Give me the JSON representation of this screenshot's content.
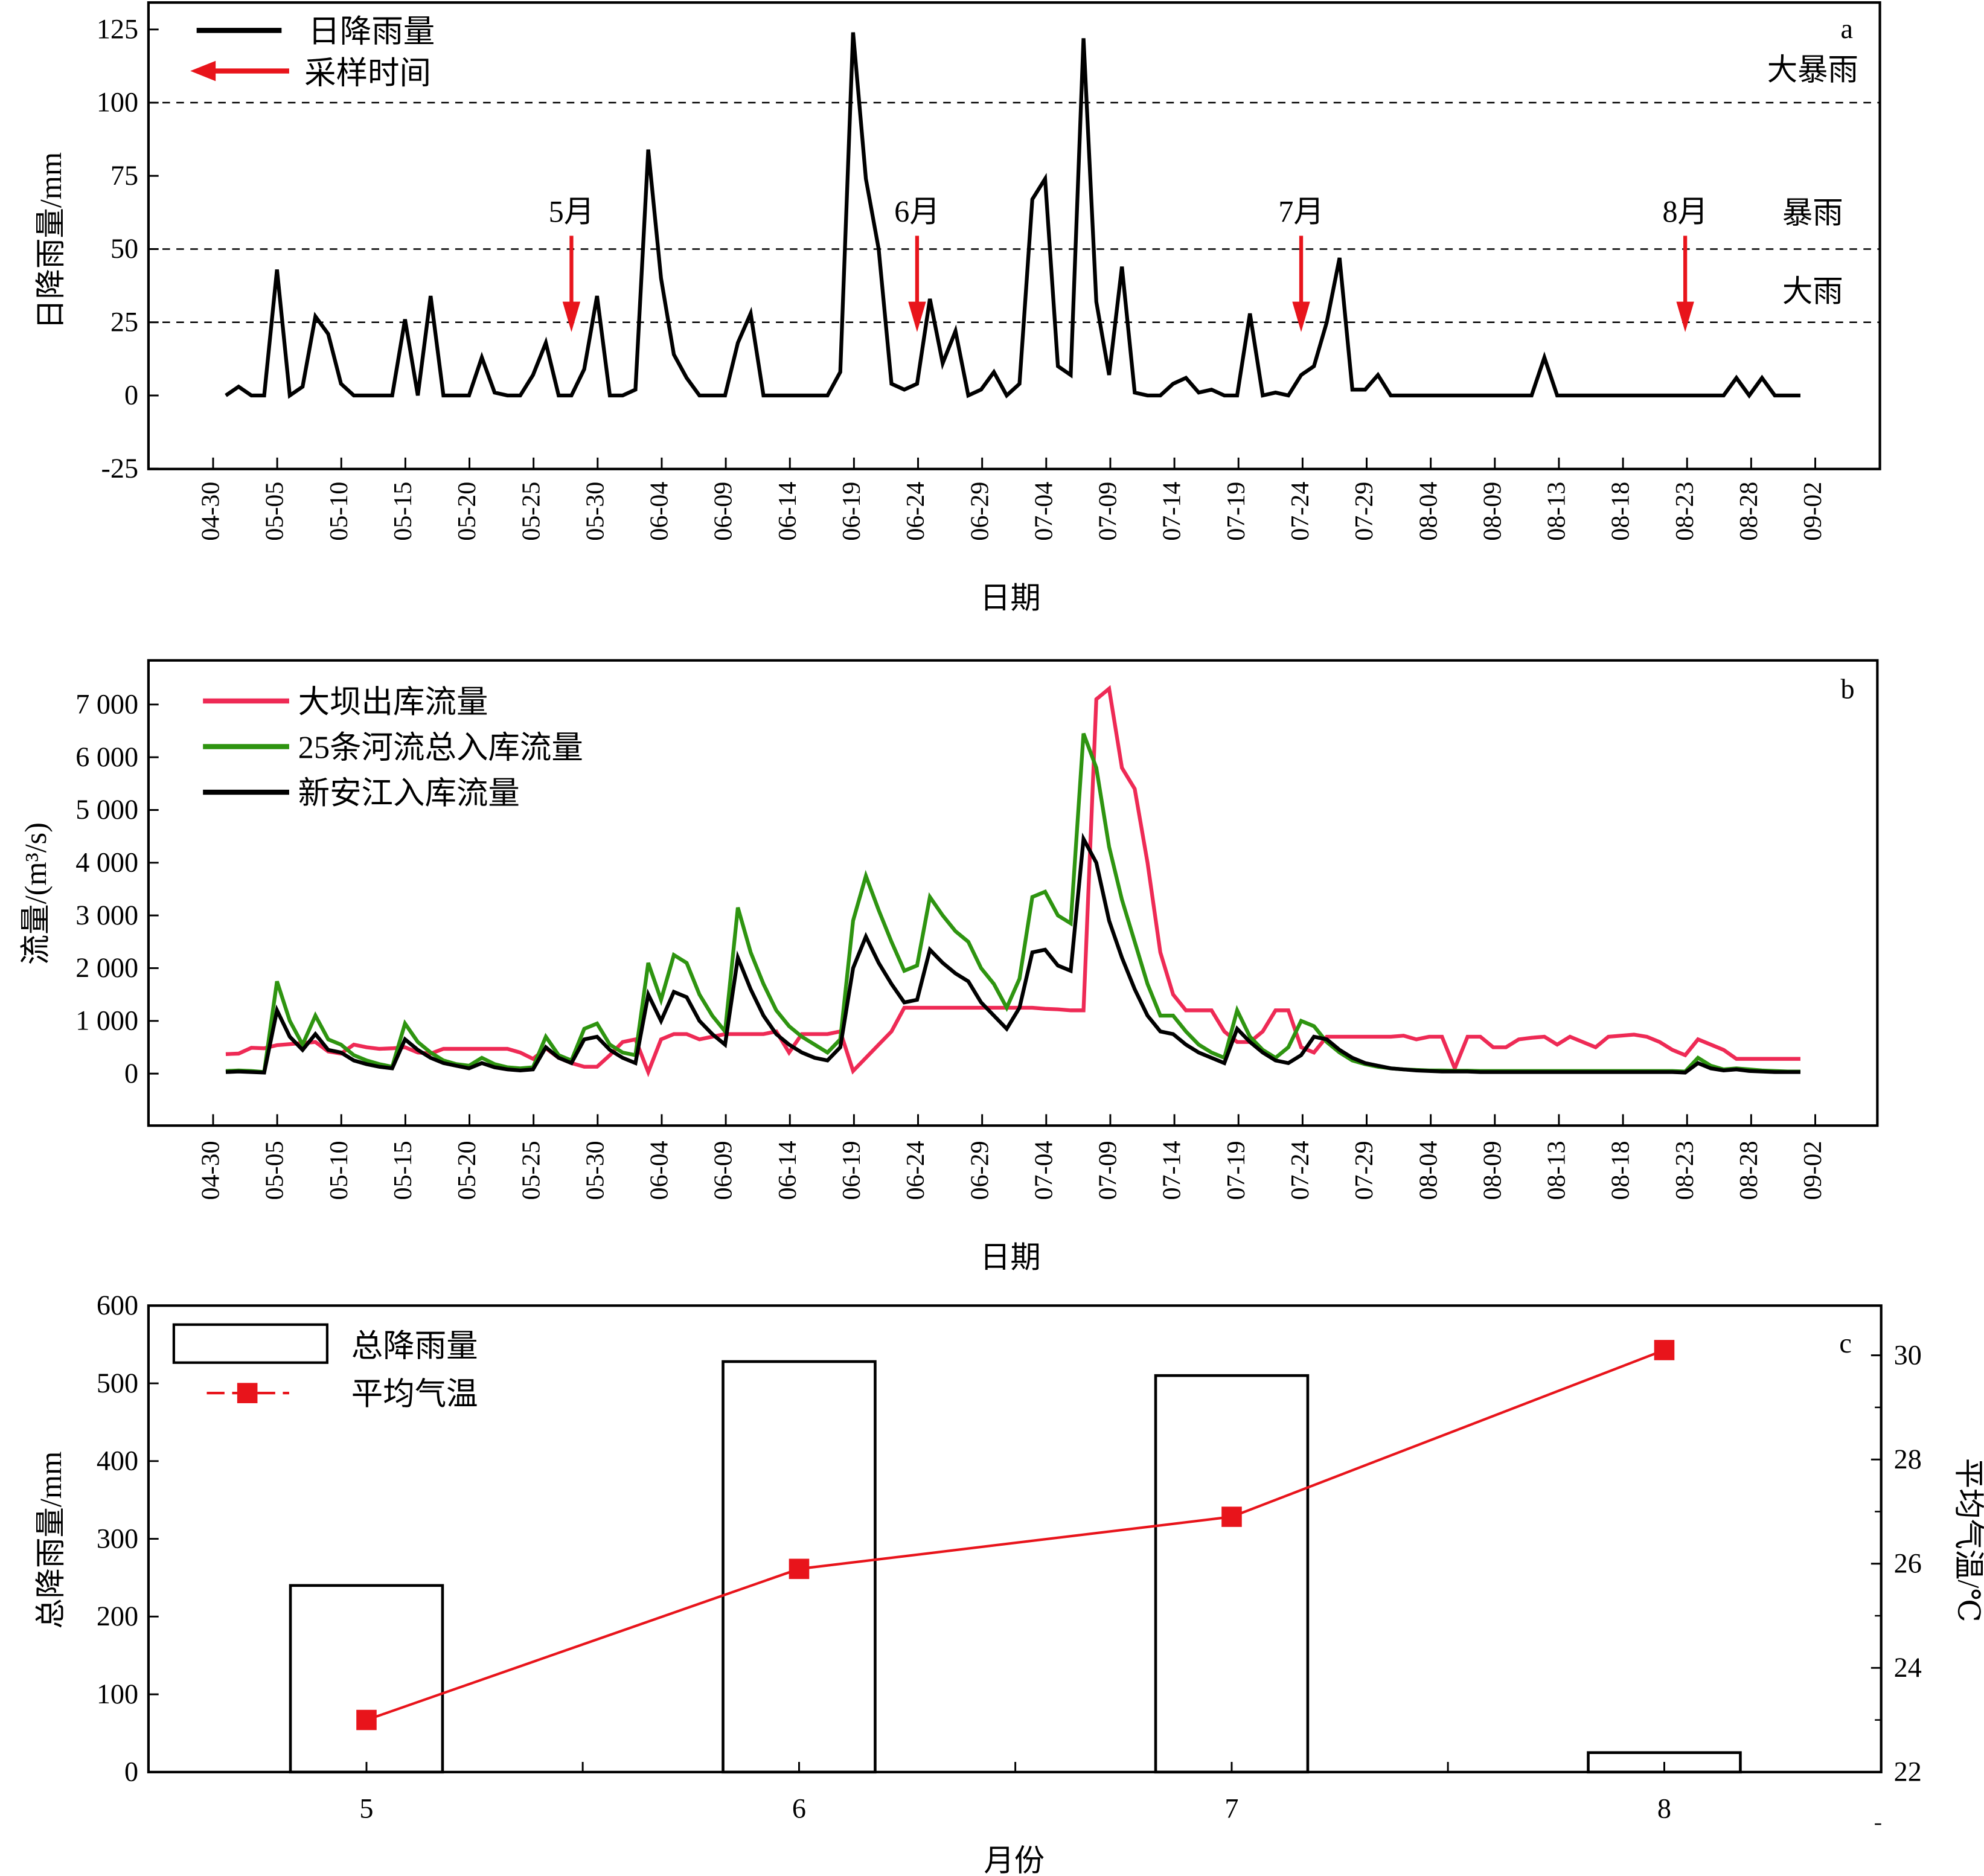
{
  "chart_data": [
    {
      "panel": "a",
      "type": "line",
      "ylabel": "日降雨量/mm",
      "xlabel": "日期",
      "ylim": [
        -25,
        125
      ],
      "yticks": [
        "-25",
        "0",
        "25",
        "50",
        "75",
        "100",
        "125"
      ],
      "xticks": [
        "04-30",
        "05-05",
        "05-10",
        "05-15",
        "05-20",
        "05-25",
        "05-30",
        "06-04",
        "06-09",
        "06-14",
        "06-19",
        "06-24",
        "06-29",
        "07-04",
        "07-09",
        "07-14",
        "07-19",
        "07-24",
        "07-29",
        "08-04",
        "08-09",
        "08-13",
        "08-18",
        "08-23",
        "08-28",
        "09-02"
      ],
      "legend": {
        "placement": "top-left",
        "rain": "日降雨量",
        "sampling": "采样时间"
      },
      "series": [
        {
          "name": "日降雨量",
          "color": "#000000",
          "values": {
            "05": [
              0,
              3,
              0,
              0,
              43,
              0,
              3,
              27,
              21,
              4,
              0,
              0,
              0,
              0,
              26,
              0,
              34,
              0,
              0,
              0,
              13,
              1,
              0,
              0,
              7,
              18,
              0,
              0,
              9,
              34,
              0
            ],
            "06": [
              0,
              2,
              84,
              40,
              14,
              6,
              0,
              0,
              0,
              18,
              28,
              0,
              0,
              0,
              0,
              0,
              0,
              8,
              124,
              74,
              50,
              4,
              2,
              4,
              33,
              11,
              22,
              0,
              2,
              8
            ],
            "07": [
              0,
              4,
              67,
              74,
              10,
              7,
              122,
              32,
              7,
              44,
              1,
              0,
              0,
              4,
              6,
              1,
              2,
              0,
              0,
              28,
              0,
              1,
              0,
              7,
              10,
              25,
              47,
              2,
              2,
              7,
              0
            ],
            "08": [
              0,
              0,
              0,
              0,
              0,
              0,
              0,
              0,
              0,
              0,
              0,
              13,
              0,
              0,
              0,
              0,
              0,
              0,
              0,
              0,
              0,
              0,
              0,
              0,
              0,
              0,
              6,
              0,
              6,
              0,
              0
            ],
            "09": [
              0
            ]
          }
        }
      ],
      "reference_lines": [
        {
          "value": 100,
          "label": "大暴雨"
        },
        {
          "value": 50,
          "label": "暴雨"
        },
        {
          "value": 25,
          "label": "大雨"
        }
      ],
      "sampling_arrows": [
        {
          "date": "05-28",
          "label": "5月"
        },
        {
          "date": "06-24",
          "label": "6月"
        },
        {
          "date": "07-24",
          "label": "7月"
        },
        {
          "date": "08-23",
          "label": "8月"
        }
      ],
      "arrow_color": "#e8141b",
      "panel_label": "a"
    },
    {
      "panel": "b",
      "type": "line",
      "ylabel": "流量/(m³/s)",
      "xlabel": "日期",
      "ylim": [
        0,
        7000
      ],
      "yticks": [
        "0",
        "1 000",
        "2 000",
        "3 000",
        "4 000",
        "5 000",
        "6 000",
        "7 000"
      ],
      "xticks": [
        "04-30",
        "05-05",
        "05-10",
        "05-15",
        "05-20",
        "05-25",
        "05-30",
        "06-04",
        "06-09",
        "06-14",
        "06-19",
        "06-24",
        "06-29",
        "07-04",
        "07-09",
        "07-14",
        "07-19",
        "07-24",
        "07-29",
        "08-04",
        "08-09",
        "08-13",
        "08-18",
        "08-23",
        "08-28",
        "09-02"
      ],
      "legend_placement": "top-left",
      "series": [
        {
          "name": "大坝出库流量",
          "color": "#ee2a55",
          "values": {
            "05": [
              370,
              380,
              490,
              480,
              540,
              560,
              580,
              600,
              420,
              380,
              550,
              500,
              470,
              480,
              500,
              400,
              380,
              470,
              470,
              470,
              470,
              470,
              470,
              400,
              280,
              480,
              300,
              200,
              130,
              130,
              350
            ],
            "06": [
              600,
              650,
              30,
              650,
              750,
              750,
              650,
              700,
              750,
              750,
              750,
              750,
              800,
              400,
              750,
              750,
              750,
              800,
              50,
              300,
              550,
              800,
              1250,
              1250,
              1250,
              1250,
              1250,
              1250,
              1250,
              1250
            ],
            "07": [
              1250,
              1250,
              1250,
              1230,
              1220,
              1200,
              1200,
              7100,
              7300,
              5800,
              5400,
              4000,
              2300,
              1500,
              1200,
              1200,
              1200,
              800,
              600,
              600,
              800,
              1200,
              1200,
              500,
              400,
              700,
              700,
              700,
              700,
              700,
              700
            ],
            "08": [
              720,
              650,
              700,
              700,
              100,
              700,
              700,
              500,
              500,
              650,
              680,
              700,
              550,
              700,
              600,
              500,
              700,
              720,
              740,
              700,
              600,
              450,
              350,
              650,
              550,
              450,
              280,
              280,
              280,
              280,
              280
            ],
            "09": [
              280
            ]
          }
        },
        {
          "name": "25条河流总入库流量",
          "color": "#2e9410",
          "values": {
            "05": [
              50,
              60,
              50,
              30,
              1750,
              1000,
              550,
              1100,
              650,
              550,
              350,
              250,
              180,
              130,
              950,
              600,
              400,
              250,
              180,
              150,
              300,
              180,
              120,
              100,
              120,
              700,
              350,
              250,
              850,
              950,
              550
            ],
            "06": [
              400,
              350,
              2100,
              1400,
              2250,
              2100,
              1500,
              1100,
              800,
              3150,
              2300,
              1700,
              1200,
              900,
              700,
              550,
              400,
              650,
              2900,
              3750,
              3100,
              2500,
              1950,
              2050,
              3350,
              3000,
              2700,
              2500,
              2000,
              1700
            ],
            "07": [
              1250,
              1800,
              3350,
              3450,
              3000,
              2850,
              6450,
              5800,
              4300,
              3300,
              2500,
              1700,
              1100,
              1100,
              800,
              550,
              400,
              300,
              1200,
              700,
              450,
              300,
              500,
              1000,
              900,
              600,
              400,
              250,
              180,
              130,
              100
            ],
            "08": [
              80,
              70,
              60,
              60,
              55,
              55,
              50,
              50,
              50,
              50,
              50,
              50,
              50,
              50,
              50,
              50,
              50,
              50,
              50,
              50,
              50,
              50,
              40,
              300,
              150,
              80,
              100,
              80,
              60,
              50,
              40
            ],
            "09": [
              40
            ]
          }
        },
        {
          "name": "新安江入库流量",
          "color": "#000000",
          "values": {
            "05": [
              30,
              40,
              30,
              20,
              1200,
              700,
              450,
              750,
              450,
              400,
              250,
              180,
              130,
              100,
              650,
              450,
              300,
              200,
              150,
              100,
              200,
              120,
              80,
              60,
              80,
              500,
              300,
              200,
              650,
              700,
              450
            ],
            "06": [
              300,
              200,
              1500,
              1000,
              1550,
              1450,
              1000,
              750,
              550,
              2200,
              1600,
              1100,
              750,
              550,
              400,
              300,
              250,
              500,
              2000,
              2600,
              2100,
              1700,
              1350,
              1400,
              2350,
              2100,
              1900,
              1750,
              1350,
              1100
            ],
            "07": [
              850,
              1250,
              2300,
              2350,
              2050,
              1950,
              4450,
              4000,
              2900,
              2200,
              1600,
              1100,
              800,
              750,
              550,
              400,
              300,
              200,
              850,
              600,
              400,
              250,
              200,
              350,
              700,
              650,
              450,
              300,
              200,
              150,
              100
            ],
            "08": [
              80,
              60,
              50,
              40,
              40,
              40,
              30,
              30,
              30,
              30,
              30,
              30,
              30,
              30,
              30,
              30,
              30,
              30,
              30,
              30,
              30,
              30,
              20,
              200,
              100,
              60,
              80,
              50,
              40,
              30,
              30
            ],
            "09": [
              30
            ]
          }
        }
      ],
      "panel_label": "b"
    },
    {
      "panel": "c",
      "type": "bar+line",
      "xlabel": "月份",
      "ylabel": "总降雨量/mm",
      "ylabel_right": "平均气温/℃",
      "categories": [
        "5",
        "6",
        "7",
        "8"
      ],
      "ylim": [
        0,
        600
      ],
      "ylim_right": [
        22,
        31
      ],
      "yticks": [
        "0",
        "100",
        "200",
        "300",
        "400",
        "500",
        "600"
      ],
      "yticks_right": [
        "22",
        "24",
        "26",
        "28",
        "30"
      ],
      "series": [
        {
          "name": "总降雨量",
          "type": "bar",
          "values": [
            240,
            528,
            510,
            25
          ],
          "color": "#ffffff"
        },
        {
          "name": "平均气温",
          "type": "line",
          "axis": "right",
          "values": [
            23.0,
            25.9,
            26.9,
            30.1
          ],
          "color": "#e8141b"
        }
      ],
      "legend_placement": "top-left",
      "panel_label": "c"
    }
  ]
}
